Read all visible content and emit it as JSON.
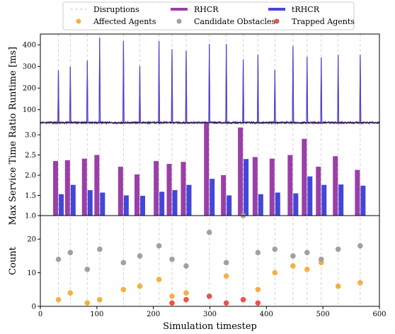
{
  "chart_data": [
    {
      "type": "line",
      "ylabel": "Runtime [ms]",
      "xlim": [
        0,
        600
      ],
      "ylim": [
        40,
        450
      ],
      "yticks": [
        100,
        200,
        300,
        400
      ],
      "baseline_ms": 40,
      "series": [
        {
          "name": "RHCR",
          "color": "#9b3fa8",
          "spikes": [
            [
              32,
              280
            ],
            [
              53,
              298
            ],
            [
              83,
              328
            ],
            [
              105,
              432
            ],
            [
              147,
              418
            ],
            [
              176,
              300
            ],
            [
              210,
              417
            ],
            [
              233,
              378
            ],
            [
              258,
              373
            ],
            [
              299,
              403
            ],
            [
              329,
              403
            ],
            [
              359,
              330
            ],
            [
              385,
              352
            ],
            [
              415,
              284
            ],
            [
              447,
              393
            ],
            [
              472,
              343
            ],
            [
              497,
              340
            ],
            [
              527,
              352
            ],
            [
              566,
              352
            ]
          ]
        },
        {
          "name": "tRHCR",
          "color": "#4446d8",
          "spikes": [
            [
              32,
              283
            ],
            [
              53,
              300
            ],
            [
              83,
              326
            ],
            [
              105,
              433
            ],
            [
              147,
              418
            ],
            [
              176,
              303
            ],
            [
              210,
              418
            ],
            [
              233,
              380
            ],
            [
              258,
              373
            ],
            [
              299,
              404
            ],
            [
              329,
              404
            ],
            [
              359,
              333
            ],
            [
              385,
              355
            ],
            [
              415,
              285
            ],
            [
              447,
              395
            ],
            [
              472,
              345
            ],
            [
              497,
              342
            ],
            [
              527,
              354
            ],
            [
              566,
              354
            ]
          ]
        }
      ]
    },
    {
      "type": "bar",
      "ylabel": "Max Service Time Ratio",
      "ylim": [
        1.0,
        3.3
      ],
      "yticks": [
        1.0,
        1.5,
        2.0,
        2.5,
        3.0
      ],
      "x": [
        32,
        53,
        83,
        105,
        147,
        176,
        210,
        233,
        258,
        299,
        329,
        359,
        385,
        415,
        447,
        472,
        497,
        527,
        566
      ],
      "series": [
        {
          "name": "RHCR",
          "color": "#9b3fa8",
          "values": [
            2.35,
            2.37,
            2.41,
            2.5,
            2.21,
            2.02,
            2.35,
            2.28,
            2.33,
            3.3,
            2.0,
            3.18,
            2.45,
            2.41,
            2.5,
            2.9,
            2.21,
            2.47,
            2.13
          ]
        },
        {
          "name": "tRHCR",
          "color": "#4446d8",
          "values": [
            1.53,
            1.76,
            1.63,
            1.57,
            1.5,
            1.49,
            1.59,
            1.63,
            1.76,
            1.91,
            1.5,
            2.4,
            1.53,
            1.57,
            1.55,
            1.97,
            1.76,
            1.77,
            1.74
          ]
        }
      ]
    },
    {
      "type": "scatter",
      "ylabel": "Count",
      "xlabel": "Simulation timestep",
      "xlim": [
        0,
        600
      ],
      "ylim": [
        0,
        27
      ],
      "xticks": [
        0,
        100,
        200,
        300,
        400,
        500,
        600
      ],
      "yticks": [
        0,
        10,
        20
      ],
      "series": [
        {
          "name": "Affected Agents",
          "color": "#f5b041",
          "points": [
            [
              32,
              2
            ],
            [
              53,
              4
            ],
            [
              83,
              1
            ],
            [
              105,
              2
            ],
            [
              147,
              5
            ],
            [
              176,
              6
            ],
            [
              210,
              8
            ],
            [
              233,
              3
            ],
            [
              258,
              4
            ],
            [
              299,
              3
            ],
            [
              329,
              9
            ],
            [
              359,
              2
            ],
            [
              385,
              5
            ],
            [
              415,
              10
            ],
            [
              447,
              12
            ],
            [
              472,
              11
            ],
            [
              497,
              13
            ],
            [
              527,
              6
            ],
            [
              566,
              7
            ]
          ]
        },
        {
          "name": "Candidate Obstacles",
          "color": "#a0a0a0",
          "points": [
            [
              32,
              14
            ],
            [
              53,
              16
            ],
            [
              83,
              11
            ],
            [
              105,
              17
            ],
            [
              147,
              13
            ],
            [
              176,
              15
            ],
            [
              210,
              18
            ],
            [
              233,
              14
            ],
            [
              258,
              12
            ],
            [
              299,
              22
            ],
            [
              329,
              13
            ],
            [
              359,
              27
            ],
            [
              385,
              16
            ],
            [
              415,
              17
            ],
            [
              447,
              15
            ],
            [
              472,
              16
            ],
            [
              497,
              14
            ],
            [
              527,
              17
            ],
            [
              566,
              18
            ]
          ]
        },
        {
          "name": "Trapped Agents",
          "color": "#e8544e",
          "points": [
            [
              233,
              1
            ],
            [
              258,
              2
            ],
            [
              299,
              3
            ],
            [
              329,
              1
            ],
            [
              359,
              2
            ],
            [
              385,
              1
            ]
          ]
        }
      ]
    }
  ],
  "disruptions": {
    "name": "Disruptions",
    "x": [
      32,
      53,
      83,
      105,
      147,
      176,
      210,
      233,
      258,
      299,
      329,
      359,
      385,
      415,
      447,
      472,
      497,
      527,
      566
    ]
  },
  "legend": [
    {
      "label": "Disruptions",
      "kind": "dash",
      "color": "#c8c8c8"
    },
    {
      "label": "RHCR",
      "kind": "line",
      "color": "#9b3fa8"
    },
    {
      "label": "tRHCR",
      "kind": "line",
      "color": "#4446d8"
    },
    {
      "label": "Affected Agents",
      "kind": "dot",
      "color": "#f5b041"
    },
    {
      "label": "Candidate Obstacles",
      "kind": "dot",
      "color": "#a0a0a0"
    },
    {
      "label": "Trapped Agents",
      "kind": "dot",
      "color": "#e8544e"
    }
  ]
}
